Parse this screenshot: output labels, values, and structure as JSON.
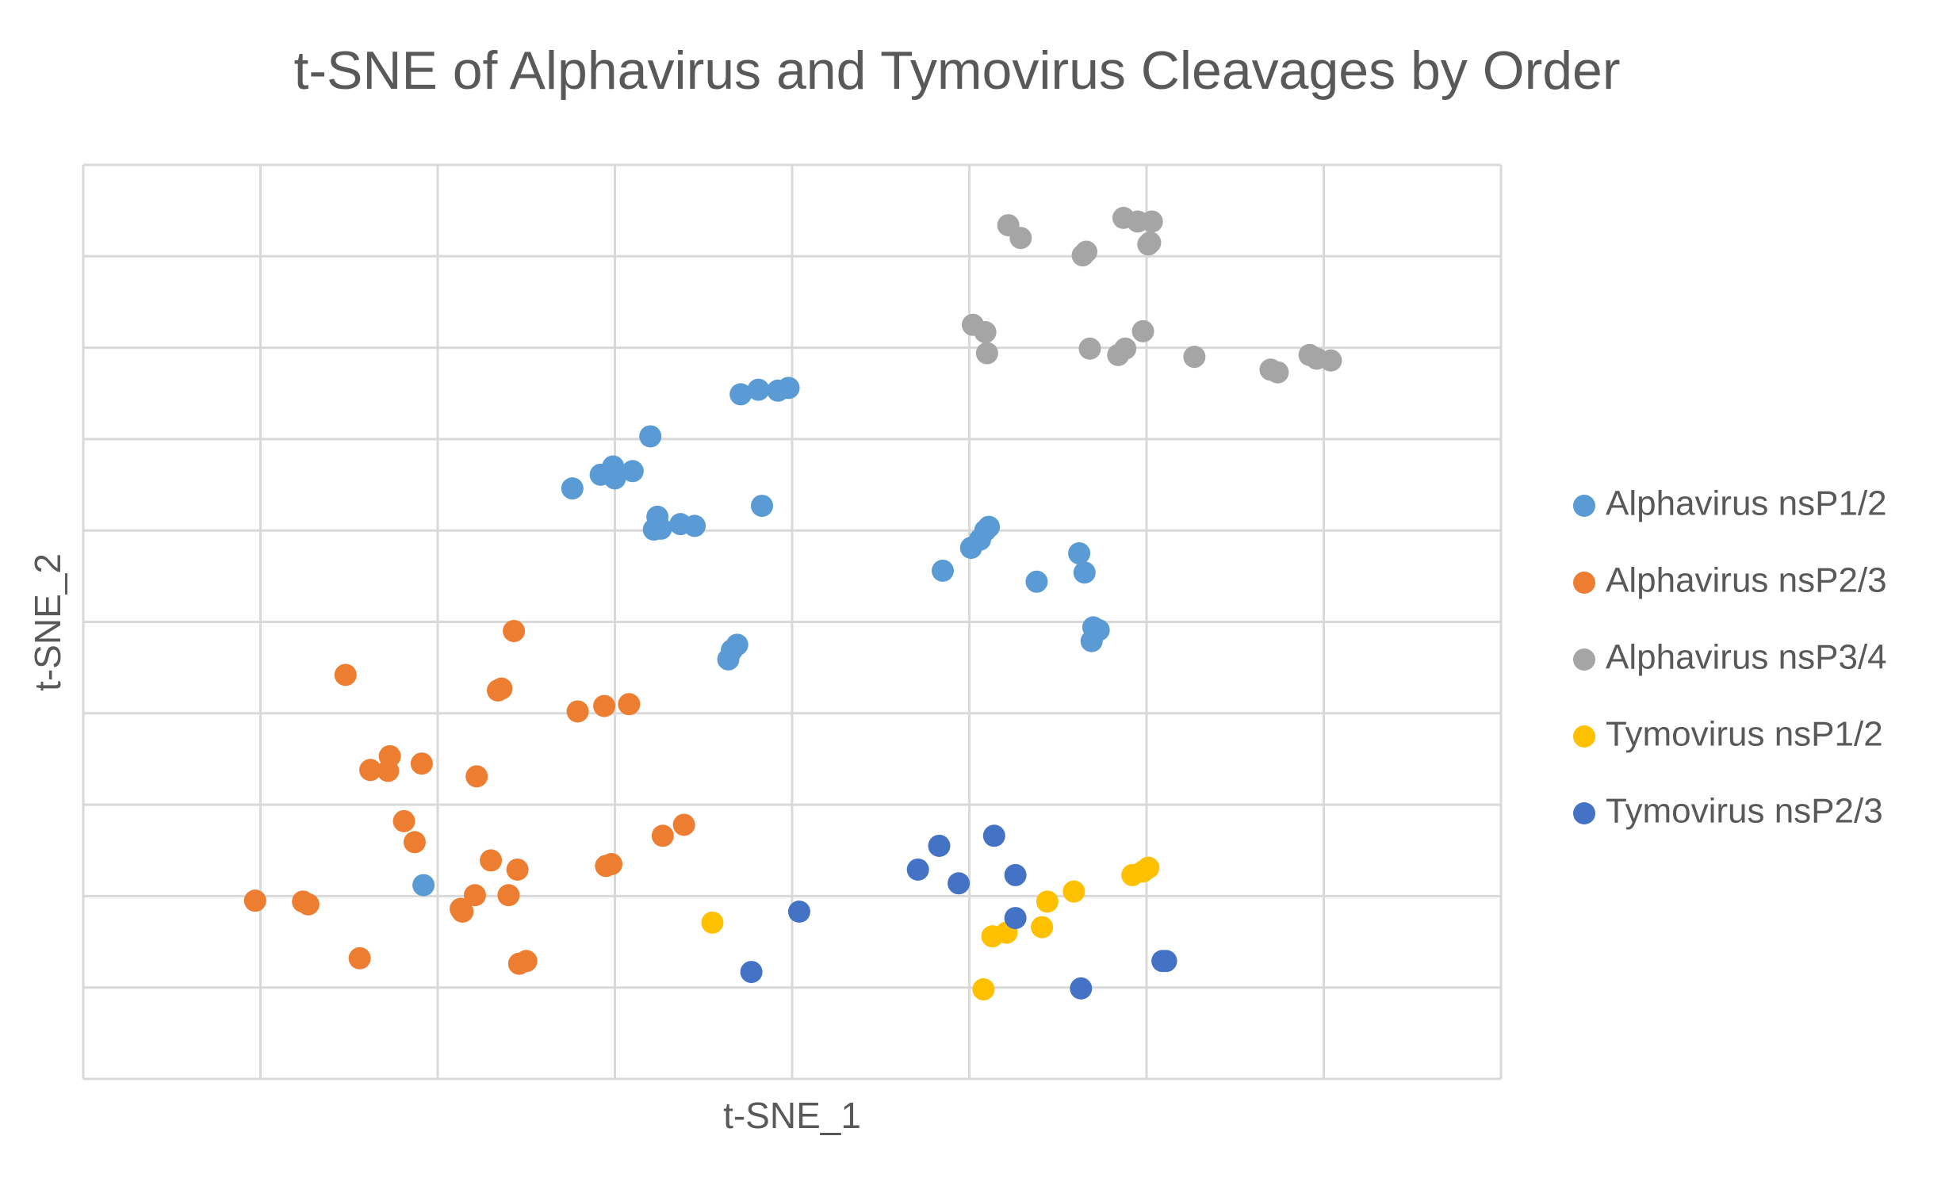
{
  "chart_data": {
    "type": "scatter",
    "title": "t-SNE of Alphavirus and Tymovirus Cleavages by Order",
    "x_label": "t-SNE_1",
    "y_label": "t-SNE_2",
    "xlim": [
      0,
      8
    ],
    "ylim": [
      0,
      10
    ],
    "xticks": [
      0,
      1,
      2,
      3,
      4,
      5,
      6,
      7,
      8
    ],
    "yticks": [
      0,
      1,
      2,
      3,
      4,
      5,
      6,
      7,
      8,
      9,
      10
    ],
    "grid": true,
    "legend": "right",
    "series": [
      {
        "name": "Alphavirus nsP1/2",
        "color": "#5b9bd5",
        "x": [
          3.71,
          3.81,
          3.92,
          3.98,
          3.2,
          2.76,
          2.92,
          2.99,
          3.0,
          3.1,
          3.24,
          3.22,
          3.26,
          3.37,
          3.45,
          3.83,
          4.85,
          5.01,
          5.06,
          5.09,
          5.11,
          5.38,
          5.62,
          5.65,
          5.7,
          5.73,
          5.69,
          3.69,
          3.66,
          3.64,
          1.92
        ],
        "y": [
          7.49,
          7.54,
          7.53,
          7.56,
          7.03,
          6.46,
          6.61,
          6.7,
          6.57,
          6.65,
          6.15,
          6.01,
          6.02,
          6.07,
          6.05,
          6.27,
          5.56,
          5.81,
          5.9,
          6.0,
          6.04,
          5.44,
          5.75,
          5.54,
          4.94,
          4.91,
          4.79,
          4.75,
          4.69,
          4.59,
          2.12
        ]
      },
      {
        "name": "Alphavirus nsP2/3",
        "color": "#ed7d31",
        "x": [
          2.43,
          1.48,
          2.34,
          2.36,
          2.79,
          2.94,
          3.08,
          1.73,
          1.62,
          1.72,
          1.91,
          2.22,
          1.81,
          1.87,
          3.39,
          3.27,
          2.3,
          2.45,
          2.98,
          2.95,
          0.97,
          1.24,
          1.27,
          2.21,
          2.4,
          2.13,
          2.14,
          1.56,
          2.5,
          2.46
        ],
        "y": [
          4.9,
          4.42,
          4.25,
          4.27,
          4.02,
          4.08,
          4.1,
          3.53,
          3.38,
          3.37,
          3.45,
          3.31,
          2.82,
          2.59,
          2.78,
          2.66,
          2.39,
          2.29,
          2.35,
          2.33,
          1.95,
          1.94,
          1.91,
          2.01,
          2.01,
          1.86,
          1.83,
          1.32,
          1.29,
          1.26
        ]
      },
      {
        "name": "Alphavirus nsP3/4",
        "color": "#a5a5a5",
        "x": [
          5.22,
          5.29,
          5.87,
          5.95,
          6.03,
          5.66,
          5.64,
          6.02,
          6.01,
          5.02,
          5.09,
          5.1,
          5.68,
          5.98,
          5.84,
          5.88,
          6.27,
          6.7,
          6.74,
          6.92,
          6.96,
          7.04
        ],
        "y": [
          9.34,
          9.2,
          9.42,
          9.38,
          9.38,
          9.05,
          9.01,
          9.15,
          9.13,
          8.25,
          8.17,
          7.94,
          7.99,
          8.18,
          7.92,
          7.99,
          7.9,
          7.76,
          7.73,
          7.92,
          7.88,
          7.86
        ]
      },
      {
        "name": "Tymovirus nsP1/2",
        "color": "#ffc000",
        "x": [
          3.55,
          5.13,
          5.21,
          5.41,
          5.44,
          5.59,
          5.92,
          5.98,
          6.01,
          5.08
        ],
        "y": [
          1.71,
          1.56,
          1.6,
          1.66,
          1.94,
          2.05,
          2.23,
          2.27,
          2.31,
          0.98
        ]
      },
      {
        "name": "Tymovirus nsP2/3",
        "color": "#4472c4",
        "x": [
          4.04,
          3.77,
          4.71,
          4.83,
          4.94,
          5.14,
          5.26,
          5.26,
          5.63,
          6.09,
          6.11
        ],
        "y": [
          1.83,
          1.17,
          2.29,
          2.55,
          2.14,
          2.66,
          2.23,
          1.76,
          0.99,
          1.29,
          1.29
        ]
      }
    ]
  }
}
